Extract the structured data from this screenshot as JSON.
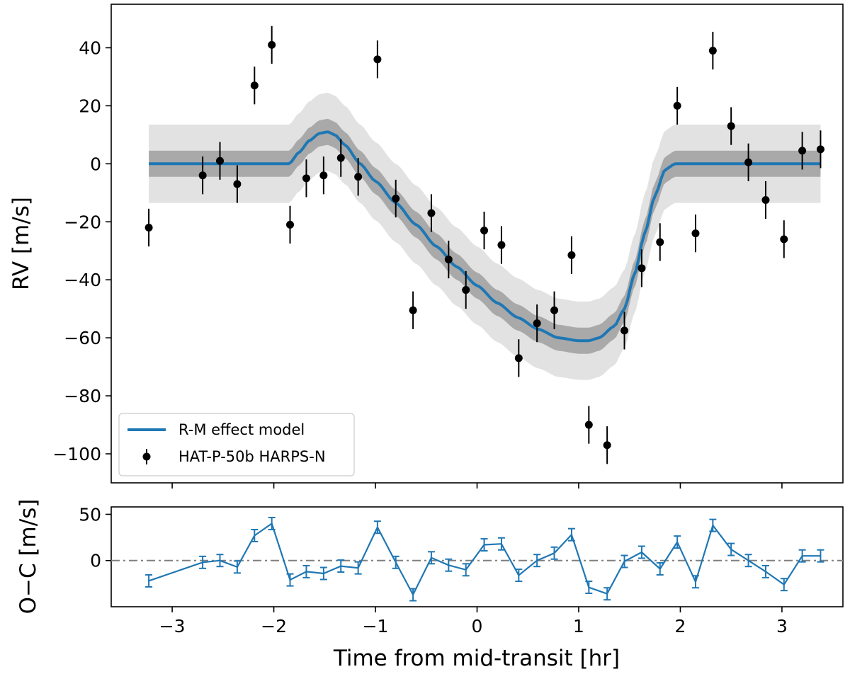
{
  "chart_data": [
    {
      "type": "scatter",
      "panel": "main",
      "title": "",
      "xlabel": "",
      "ylabel": "RV [m/s]",
      "xlim": [
        -3.6,
        3.6
      ],
      "ylim": [
        -110,
        55
      ],
      "yticks": [
        40,
        20,
        0,
        -20,
        -40,
        -60,
        -80,
        -100
      ],
      "ytick_labels": [
        "40",
        "20",
        "0",
        "−20",
        "−40",
        "−60",
        "−80",
        "−100"
      ],
      "grid": false,
      "legend_placement": "lower-left",
      "colors": {
        "model": "#1f77b4",
        "data": "#000000",
        "band_inner": "#a9a9a9",
        "band_outer": "#e2e2e2"
      },
      "series": [
        {
          "name": "R-M effect model",
          "kind": "line",
          "x": [
            -3.23,
            -1.85,
            -1.75,
            -1.65,
            -1.55,
            -1.47,
            -1.4,
            -1.3,
            -1.15,
            -1.0,
            -0.8,
            -0.6,
            -0.4,
            -0.2,
            0.0,
            0.2,
            0.4,
            0.6,
            0.8,
            1.0,
            1.1,
            1.2,
            1.35,
            1.45,
            1.55,
            1.65,
            1.75,
            1.85,
            1.95,
            2.0,
            3.38
          ],
          "y": [
            0,
            0,
            4,
            8,
            10.5,
            11,
            10,
            6.5,
            0,
            -6,
            -13.5,
            -21,
            -28.5,
            -35.5,
            -42,
            -48,
            -53,
            -57,
            -60,
            -61,
            -61,
            -60,
            -56,
            -50,
            -38,
            -24,
            -11,
            -2,
            0,
            0,
            0
          ],
          "band_inner_halfwidth": 4.5,
          "band_outer_halfwidth": 13.5
        },
        {
          "name": "HAT-P-50b HARPS-N",
          "kind": "errorbar",
          "x": [
            -3.23,
            -2.7,
            -2.53,
            -2.36,
            -2.19,
            -2.02,
            -1.84,
            -1.68,
            -1.51,
            -1.34,
            -1.17,
            -0.98,
            -0.8,
            -0.63,
            -0.45,
            -0.28,
            -0.11,
            0.07,
            0.24,
            0.41,
            0.59,
            0.76,
            0.93,
            1.1,
            1.28,
            1.45,
            1.62,
            1.8,
            1.97,
            2.15,
            2.32,
            2.5,
            2.67,
            2.84,
            3.02,
            3.2,
            3.38
          ],
          "y": [
            -22,
            -4,
            1,
            -7,
            27,
            41,
            -21,
            -5,
            -4,
            2,
            -4.5,
            36,
            -12,
            -50.5,
            -17,
            -33,
            -43.5,
            -23,
            -28,
            -67,
            -55,
            -50.5,
            -31.5,
            -90,
            -97,
            -57.5,
            -36,
            -27,
            20,
            -24,
            39,
            13,
            0.5,
            -12.5,
            -26,
            4.5,
            5
          ],
          "yerr": 6.5
        }
      ]
    },
    {
      "type": "scatter",
      "panel": "residuals",
      "title": "",
      "xlabel": "Time from mid-transit [hr]",
      "ylabel": "O−C [m/s]",
      "xlim": [
        -3.6,
        3.6
      ],
      "ylim": [
        -50,
        58
      ],
      "xticks": [
        -3,
        -2,
        -1,
        0,
        1,
        2,
        3
      ],
      "xtick_labels": [
        "−3",
        "−2",
        "−1",
        "0",
        "1",
        "2",
        "3"
      ],
      "yticks": [
        50,
        0
      ],
      "ytick_labels": [
        "50",
        "0"
      ],
      "reference_line": 0,
      "colors": {
        "residuals": "#1f77b4",
        "reference": "#7f7f7f"
      },
      "series": [
        {
          "name": "",
          "kind": "errorbar-line",
          "x": [
            -3.23,
            -2.7,
            -2.53,
            -2.36,
            -2.19,
            -2.02,
            -1.84,
            -1.68,
            -1.51,
            -1.34,
            -1.17,
            -0.98,
            -0.8,
            -0.63,
            -0.45,
            -0.28,
            -0.11,
            0.07,
            0.24,
            0.41,
            0.59,
            0.76,
            0.93,
            1.1,
            1.28,
            1.45,
            1.62,
            1.8,
            1.97,
            2.15,
            2.32,
            2.5,
            2.67,
            2.84,
            3.02,
            3.2,
            3.38
          ],
          "y": [
            -22,
            -2,
            0,
            -7,
            27,
            40,
            -21,
            -12,
            -14,
            -6,
            -8,
            36,
            -2,
            -37,
            3,
            -5,
            -10,
            17,
            18,
            -16,
            0,
            8,
            28,
            -29,
            -36,
            -1,
            9,
            -9,
            20,
            -23,
            38,
            12,
            0,
            -12,
            -26,
            5,
            5
          ],
          "yerr": 6.5
        }
      ]
    }
  ]
}
